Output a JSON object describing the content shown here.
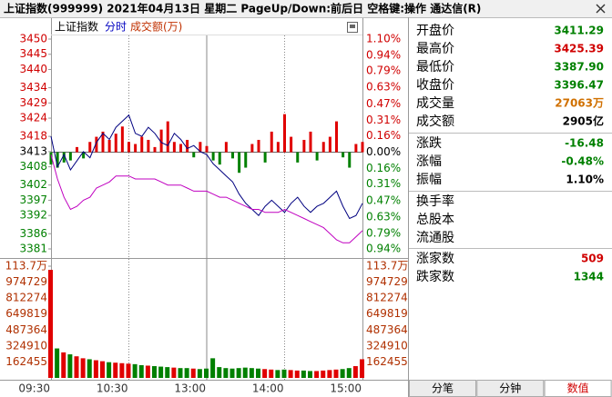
{
  "window": {
    "title": "上证指数(999999)  2021年04月13日 星期二 PageUp/Down:前后日 空格键:操作 通达信(R)"
  },
  "chart_header": {
    "name": "上证指数",
    "mode": "分时",
    "unit_label": "成交额(万)"
  },
  "chart_data": [
    {
      "type": "line",
      "x": [
        "09:30",
        "09:35",
        "09:40",
        "09:45",
        "09:50",
        "09:55",
        "10:00",
        "10:05",
        "10:10",
        "10:15",
        "10:20",
        "10:25",
        "10:30",
        "10:35",
        "10:40",
        "10:45",
        "10:50",
        "10:55",
        "11:00",
        "11:05",
        "11:10",
        "11:15",
        "11:20",
        "11:25",
        "11:30",
        "13:05",
        "13:10",
        "13:15",
        "13:20",
        "13:25",
        "13:30",
        "13:35",
        "13:40",
        "13:45",
        "13:50",
        "13:55",
        "14:00",
        "14:05",
        "14:10",
        "14:15",
        "14:20",
        "14:25",
        "14:30",
        "14:35",
        "14:40",
        "14:45",
        "14:50",
        "14:55",
        "15:00"
      ],
      "series": [
        {
          "color": "#000080",
          "values": [
            3418,
            3408,
            3412,
            3407,
            3410,
            3413,
            3411,
            3416,
            3419,
            3417,
            3421,
            3423,
            3425,
            3419,
            3418,
            3421,
            3419,
            3416,
            3415,
            3419,
            3417,
            3414,
            3415,
            3413,
            3412,
            3409,
            3407,
            3405,
            3403,
            3399,
            3396,
            3394,
            3392,
            3395,
            3397,
            3395,
            3393,
            3396,
            3398,
            3395,
            3393,
            3395,
            3396,
            3398,
            3400,
            3395,
            3391,
            3392,
            3396
          ]
        },
        {
          "color": "#c000c0",
          "values": [
            3412,
            3404,
            3398,
            3394,
            3395,
            3397,
            3398,
            3401,
            3402,
            3403,
            3405,
            3405,
            3405,
            3404,
            3404,
            3404,
            3404,
            3403,
            3402,
            3402,
            3402,
            3401,
            3400,
            3400,
            3400,
            3399,
            3398,
            3398,
            3397,
            3396,
            3395,
            3394,
            3394,
            3393,
            3393,
            3393,
            3394,
            3393,
            3392,
            3391,
            3390,
            3389,
            3388,
            3386,
            3384,
            3383,
            3383,
            3385,
            3387
          ]
        }
      ],
      "bars": {
        "axis": "y2",
        "up_color": "#e00000",
        "down_color": "#008000",
        "values": [
          -0.12,
          -0.15,
          -0.1,
          -0.08,
          0.05,
          -0.06,
          0.1,
          0.15,
          0.2,
          0.12,
          0.18,
          0.25,
          0.1,
          0.08,
          0.15,
          0.12,
          0.05,
          0.22,
          0.3,
          0.1,
          0.08,
          0.12,
          -0.05,
          0.1,
          0.06,
          -0.08,
          -0.12,
          0.1,
          -0.06,
          -0.2,
          -0.15,
          0.08,
          0.12,
          -0.1,
          0.2,
          0.1,
          0.37,
          0.15,
          -0.1,
          0.12,
          0.2,
          -0.08,
          0.1,
          0.15,
          0.3,
          -0.05,
          -0.15,
          0.08,
          0.1
        ]
      },
      "ylim": [
        3381,
        3450
      ],
      "yticks": [
        3450,
        3445,
        3440,
        3434,
        3429,
        3424,
        3418,
        3413,
        3408,
        3402,
        3397,
        3392,
        3386,
        3381
      ],
      "y2lim": [
        -0.94,
        1.1
      ],
      "y2ticks": [
        {
          "value": 1.1,
          "label": "1.10%"
        },
        {
          "value": 0.94,
          "label": "0.94%"
        },
        {
          "value": 0.79,
          "label": "0.79%"
        },
        {
          "value": 0.63,
          "label": "0.63%"
        },
        {
          "value": 0.47,
          "label": "0.47%"
        },
        {
          "value": 0.31,
          "label": "0.31%"
        },
        {
          "value": 0.16,
          "label": "0.16%"
        },
        {
          "value": 0,
          "label": "0.00%"
        },
        {
          "value": -0.16,
          "label": "0.16%"
        },
        {
          "value": -0.31,
          "label": "0.31%"
        },
        {
          "value": -0.47,
          "label": "0.47%"
        },
        {
          "value": -0.63,
          "label": "0.63%"
        },
        {
          "value": -0.79,
          "label": "0.79%"
        },
        {
          "value": -0.94,
          "label": "0.94%"
        }
      ],
      "up_color": "#d00000",
      "down_color": "#008000",
      "flat_color": "#000000"
    },
    {
      "type": "bar",
      "x": [
        "09:30",
        "09:35",
        "09:40",
        "09:45",
        "09:50",
        "09:55",
        "10:00",
        "10:05",
        "10:10",
        "10:15",
        "10:20",
        "10:25",
        "10:30",
        "10:35",
        "10:40",
        "10:45",
        "10:50",
        "10:55",
        "11:00",
        "11:05",
        "11:10",
        "11:15",
        "11:20",
        "11:25",
        "11:30",
        "13:05",
        "13:10",
        "13:15",
        "13:20",
        "13:25",
        "13:30",
        "13:35",
        "13:40",
        "13:45",
        "13:50",
        "13:55",
        "14:00",
        "14:05",
        "14:10",
        "14:15",
        "14:20",
        "14:25",
        "14:30",
        "14:35",
        "14:40",
        "14:45",
        "14:50",
        "14:55",
        "15:00"
      ],
      "values": [
        1100000,
        300000,
        260000,
        240000,
        220000,
        200000,
        190000,
        180000,
        170000,
        160000,
        155000,
        150000,
        145000,
        140000,
        130000,
        125000,
        120000,
        115000,
        110000,
        105000,
        100000,
        100000,
        95000,
        90000,
        95000,
        200000,
        110000,
        100000,
        95000,
        100000,
        105000,
        100000,
        95000,
        90000,
        85000,
        80000,
        85000,
        80000,
        75000,
        75000,
        70000,
        70000,
        75000,
        80000,
        85000,
        90000,
        100000,
        120000,
        190000
      ],
      "up_color": "#e00000",
      "down_color": "#008000",
      "ylim": [
        0,
        1137185
      ],
      "yticks": [
        {
          "value": 1137185,
          "label": "113.7万"
        },
        974729,
        812274,
        649819,
        487364,
        324910,
        162455
      ],
      "tick_color": "#b03000",
      "xticks": [
        "09:30",
        "10:30",
        "13:00",
        "14:00",
        "15:00"
      ]
    }
  ],
  "quote_panel": {
    "rows": [
      {
        "label": "开盘价",
        "value": "3411.29",
        "color": "#008000"
      },
      {
        "label": "最高价",
        "value": "3425.39",
        "color": "#d00000"
      },
      {
        "label": "最低价",
        "value": "3387.90",
        "color": "#008000"
      },
      {
        "label": "收盘价",
        "value": "3396.47",
        "color": "#008000"
      },
      {
        "label": "成交量",
        "value": "27063万",
        "color": "#d07000"
      },
      {
        "label": "成交额",
        "value": "2905亿",
        "color": "#000000"
      },
      {
        "label": "涨跌",
        "value": "-16.48",
        "color": "#008000"
      },
      {
        "label": "涨幅",
        "value": "-0.48%",
        "color": "#008000"
      },
      {
        "label": "振幅",
        "value": "1.10%",
        "color": "#000000"
      },
      {
        "label": "换手率"
      },
      {
        "label": "总股本"
      },
      {
        "label": "流通股"
      },
      {
        "label": "涨家数",
        "value": "509",
        "color": "#d00000"
      },
      {
        "label": "跌家数",
        "value": "1344",
        "color": "#008000"
      }
    ]
  },
  "tabs": {
    "items": [
      "分笔",
      "分钟",
      "数值"
    ],
    "active": 2
  }
}
